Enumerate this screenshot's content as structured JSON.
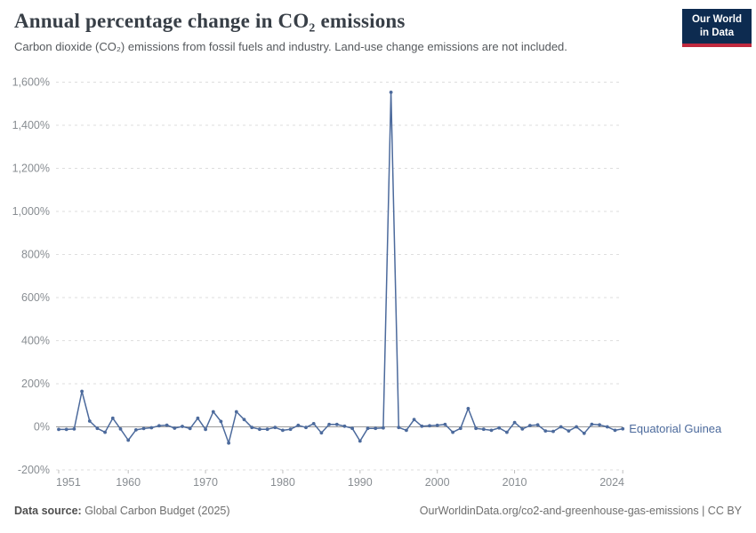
{
  "header": {
    "title": "Annual percentage change in CO₂ emissions",
    "subtitle": "Carbon dioxide (CO₂) emissions from fossil fuels and industry. Land-use change emissions are not included."
  },
  "logo": {
    "line1": "Our World",
    "line2": "in Data",
    "bg_color": "#0d2b50",
    "accent_color": "#c0293e"
  },
  "footer": {
    "source_label": "Data source:",
    "source_value": " Global Carbon Budget (2025)",
    "link": "OurWorldinData.org/co2-and-greenhouse-gas-emissions | CC BY"
  },
  "chart_data": {
    "type": "line",
    "title": "Annual percentage change in CO₂ emissions",
    "xlabel": "",
    "ylabel": "",
    "ylim": [
      -200,
      1600
    ],
    "grid": "horizontal-dashed",
    "legend_position": "end-of-line-label",
    "colors": {
      "line": "#4c6a9c",
      "grid": "#dedede",
      "zero_line": "#9a9a9a",
      "tick_text": "#888d92",
      "axis_tick": "#bdbdbd"
    },
    "yticks": [
      {
        "v": 1600,
        "label": "1,600%"
      },
      {
        "v": 1400,
        "label": "1,400%"
      },
      {
        "v": 1200,
        "label": "1,200%"
      },
      {
        "v": 1000,
        "label": "1,000%"
      },
      {
        "v": 800,
        "label": "800%"
      },
      {
        "v": 600,
        "label": "600%"
      },
      {
        "v": 400,
        "label": "400%"
      },
      {
        "v": 200,
        "label": "200%"
      },
      {
        "v": 0,
        "label": "0%"
      },
      {
        "v": -200,
        "label": "-200%"
      }
    ],
    "xticks": [
      {
        "year": 1951,
        "label": "1951"
      },
      {
        "year": 1960,
        "label": "1960"
      },
      {
        "year": 1970,
        "label": "1970"
      },
      {
        "year": 1980,
        "label": "1980"
      },
      {
        "year": 1990,
        "label": "1990"
      },
      {
        "year": 2000,
        "label": "2000"
      },
      {
        "year": 2010,
        "label": "2010"
      },
      {
        "year": 2024,
        "label": "2024"
      }
    ],
    "series": [
      {
        "name": "Equatorial Guinea",
        "x": [
          1951,
          1952,
          1953,
          1954,
          1955,
          1956,
          1957,
          1958,
          1959,
          1960,
          1961,
          1962,
          1963,
          1964,
          1965,
          1966,
          1967,
          1968,
          1969,
          1970,
          1971,
          1972,
          1973,
          1974,
          1975,
          1976,
          1977,
          1978,
          1979,
          1980,
          1981,
          1982,
          1983,
          1984,
          1985,
          1986,
          1987,
          1988,
          1989,
          1990,
          1991,
          1992,
          1993,
          1994,
          1995,
          1996,
          1997,
          1998,
          1999,
          2000,
          2001,
          2002,
          2003,
          2004,
          2005,
          2006,
          2007,
          2008,
          2009,
          2010,
          2011,
          2012,
          2013,
          2014,
          2015,
          2016,
          2017,
          2018,
          2019,
          2020,
          2021,
          2022,
          2023,
          2024
        ],
        "values": [
          -12,
          -12,
          -10,
          165,
          27,
          -7,
          -25,
          40,
          -10,
          -62,
          -14,
          -8,
          -4,
          5,
          8,
          -6,
          2,
          -8,
          40,
          -12,
          70,
          25,
          -75,
          70,
          34,
          -3,
          -11,
          -11,
          -3,
          -16,
          -11,
          7,
          -3,
          15,
          -28,
          11,
          11,
          3,
          -7,
          -66,
          -7,
          -7,
          -5,
          1553,
          -3,
          -16,
          34,
          3,
          5,
          7,
          11,
          -25,
          -7,
          85,
          -7,
          -11,
          -16,
          -5,
          -25,
          20,
          -10,
          6,
          9,
          -19,
          -21,
          0,
          -19,
          0,
          -30,
          12,
          9,
          0,
          -16,
          -9
        ]
      }
    ]
  }
}
